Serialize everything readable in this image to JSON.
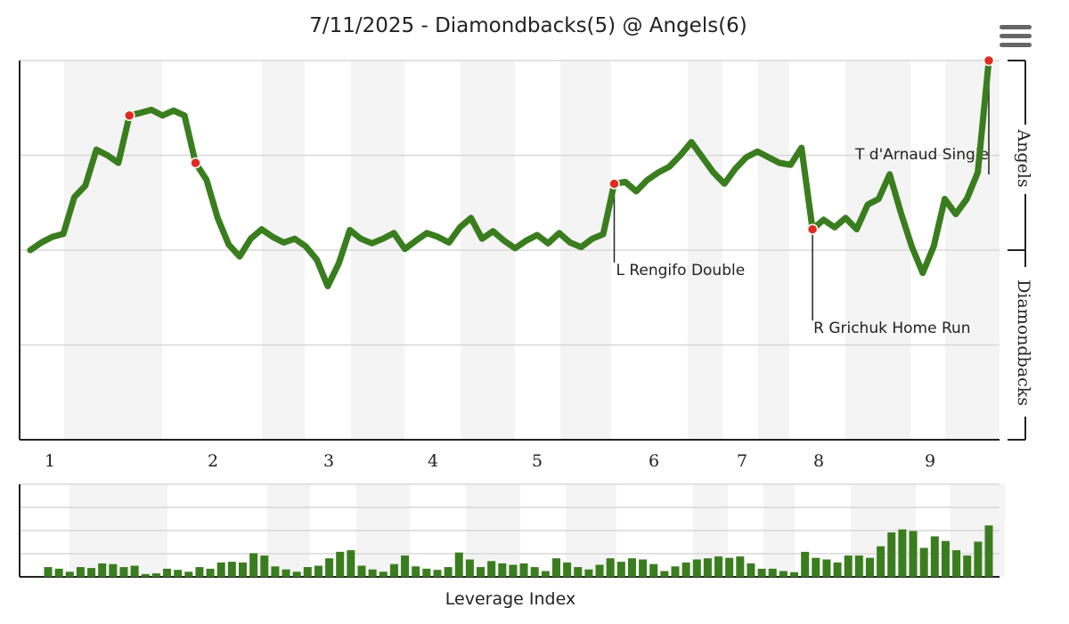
{
  "chart_data": [
    {
      "type": "line",
      "title": "7/11/2025 - Diamondbacks(5) @ Angels(6)",
      "home_team_label": "Angels",
      "away_team_label": "Diamondbacks",
      "innings": [
        "1",
        "2",
        "3",
        "4",
        "5",
        "6",
        "7",
        "8",
        "9"
      ],
      "ylim": [
        0,
        100
      ],
      "grid": true,
      "line_color": "#3a7d1e",
      "highlight_color": "#e02b20",
      "y": [
        50,
        52,
        53.5,
        54.3,
        64,
        67,
        76.5,
        75,
        73,
        85.5,
        86.2,
        87,
        85.5,
        86.8,
        85.5,
        73,
        68.5,
        58.5,
        51.5,
        48.3,
        53,
        55.5,
        53.5,
        52,
        53,
        51,
        47.5,
        40.5,
        46.5,
        55.3,
        53,
        51.8,
        53,
        54.5,
        50.3,
        52.5,
        54.5,
        53.5,
        52,
        56,
        58.5,
        53,
        55,
        52.5,
        50.5,
        52.5,
        54,
        51.8,
        54.5,
        52,
        50.8,
        53,
        54.2,
        67.5,
        68,
        65.5,
        68.5,
        70.5,
        72,
        75,
        78.5,
        74.5,
        70.5,
        67.5,
        71.5,
        74.5,
        76,
        74.5,
        73,
        72.5,
        77,
        55.5,
        58,
        56,
        58.5,
        55.5,
        62,
        63.5,
        70,
        60,
        51,
        44,
        51,
        63.5,
        59.5,
        63.5,
        70.5,
        100
      ],
      "events": [
        {
          "label": "L Rengifo Double",
          "index": 53
        },
        {
          "label": "R Grichuk Home Run",
          "index": 71
        },
        {
          "label": "T d'Arnaud Single",
          "index": 87
        }
      ],
      "highlighted_points": [
        9,
        15,
        53,
        71,
        87
      ]
    },
    {
      "type": "bar",
      "title": "",
      "xlabel": "Leverage Index",
      "bar_color": "#3a7d1e",
      "ylim": [
        0,
        4
      ],
      "values": [
        0.42,
        0.35,
        0.22,
        0.42,
        0.38,
        0.58,
        0.55,
        0.42,
        0.48,
        0.12,
        0.15,
        0.35,
        0.3,
        0.22,
        0.42,
        0.35,
        0.62,
        0.65,
        0.62,
        1.02,
        0.92,
        0.45,
        0.32,
        0.22,
        0.42,
        0.48,
        0.8,
        1.08,
        1.15,
        0.48,
        0.32,
        0.22,
        0.55,
        0.92,
        0.45,
        0.35,
        0.3,
        0.42,
        1.05,
        0.75,
        0.42,
        0.68,
        0.58,
        0.52,
        0.58,
        0.42,
        0.25,
        0.8,
        0.62,
        0.42,
        0.32,
        0.52,
        0.8,
        0.65,
        0.8,
        0.75,
        0.55,
        0.25,
        0.45,
        0.62,
        0.75,
        0.8,
        0.88,
        0.82,
        0.88,
        0.58,
        0.35,
        0.35,
        0.25,
        0.2,
        1.08,
        0.82,
        0.75,
        0.62,
        0.92,
        0.92,
        0.82,
        1.32,
        1.92,
        2.05,
        1.98,
        1.25,
        1.75,
        1.55,
        1.15,
        0.92,
        1.52,
        2.22
      ]
    }
  ],
  "ui": {
    "menu_icon": "hamburger-menu-icon"
  }
}
